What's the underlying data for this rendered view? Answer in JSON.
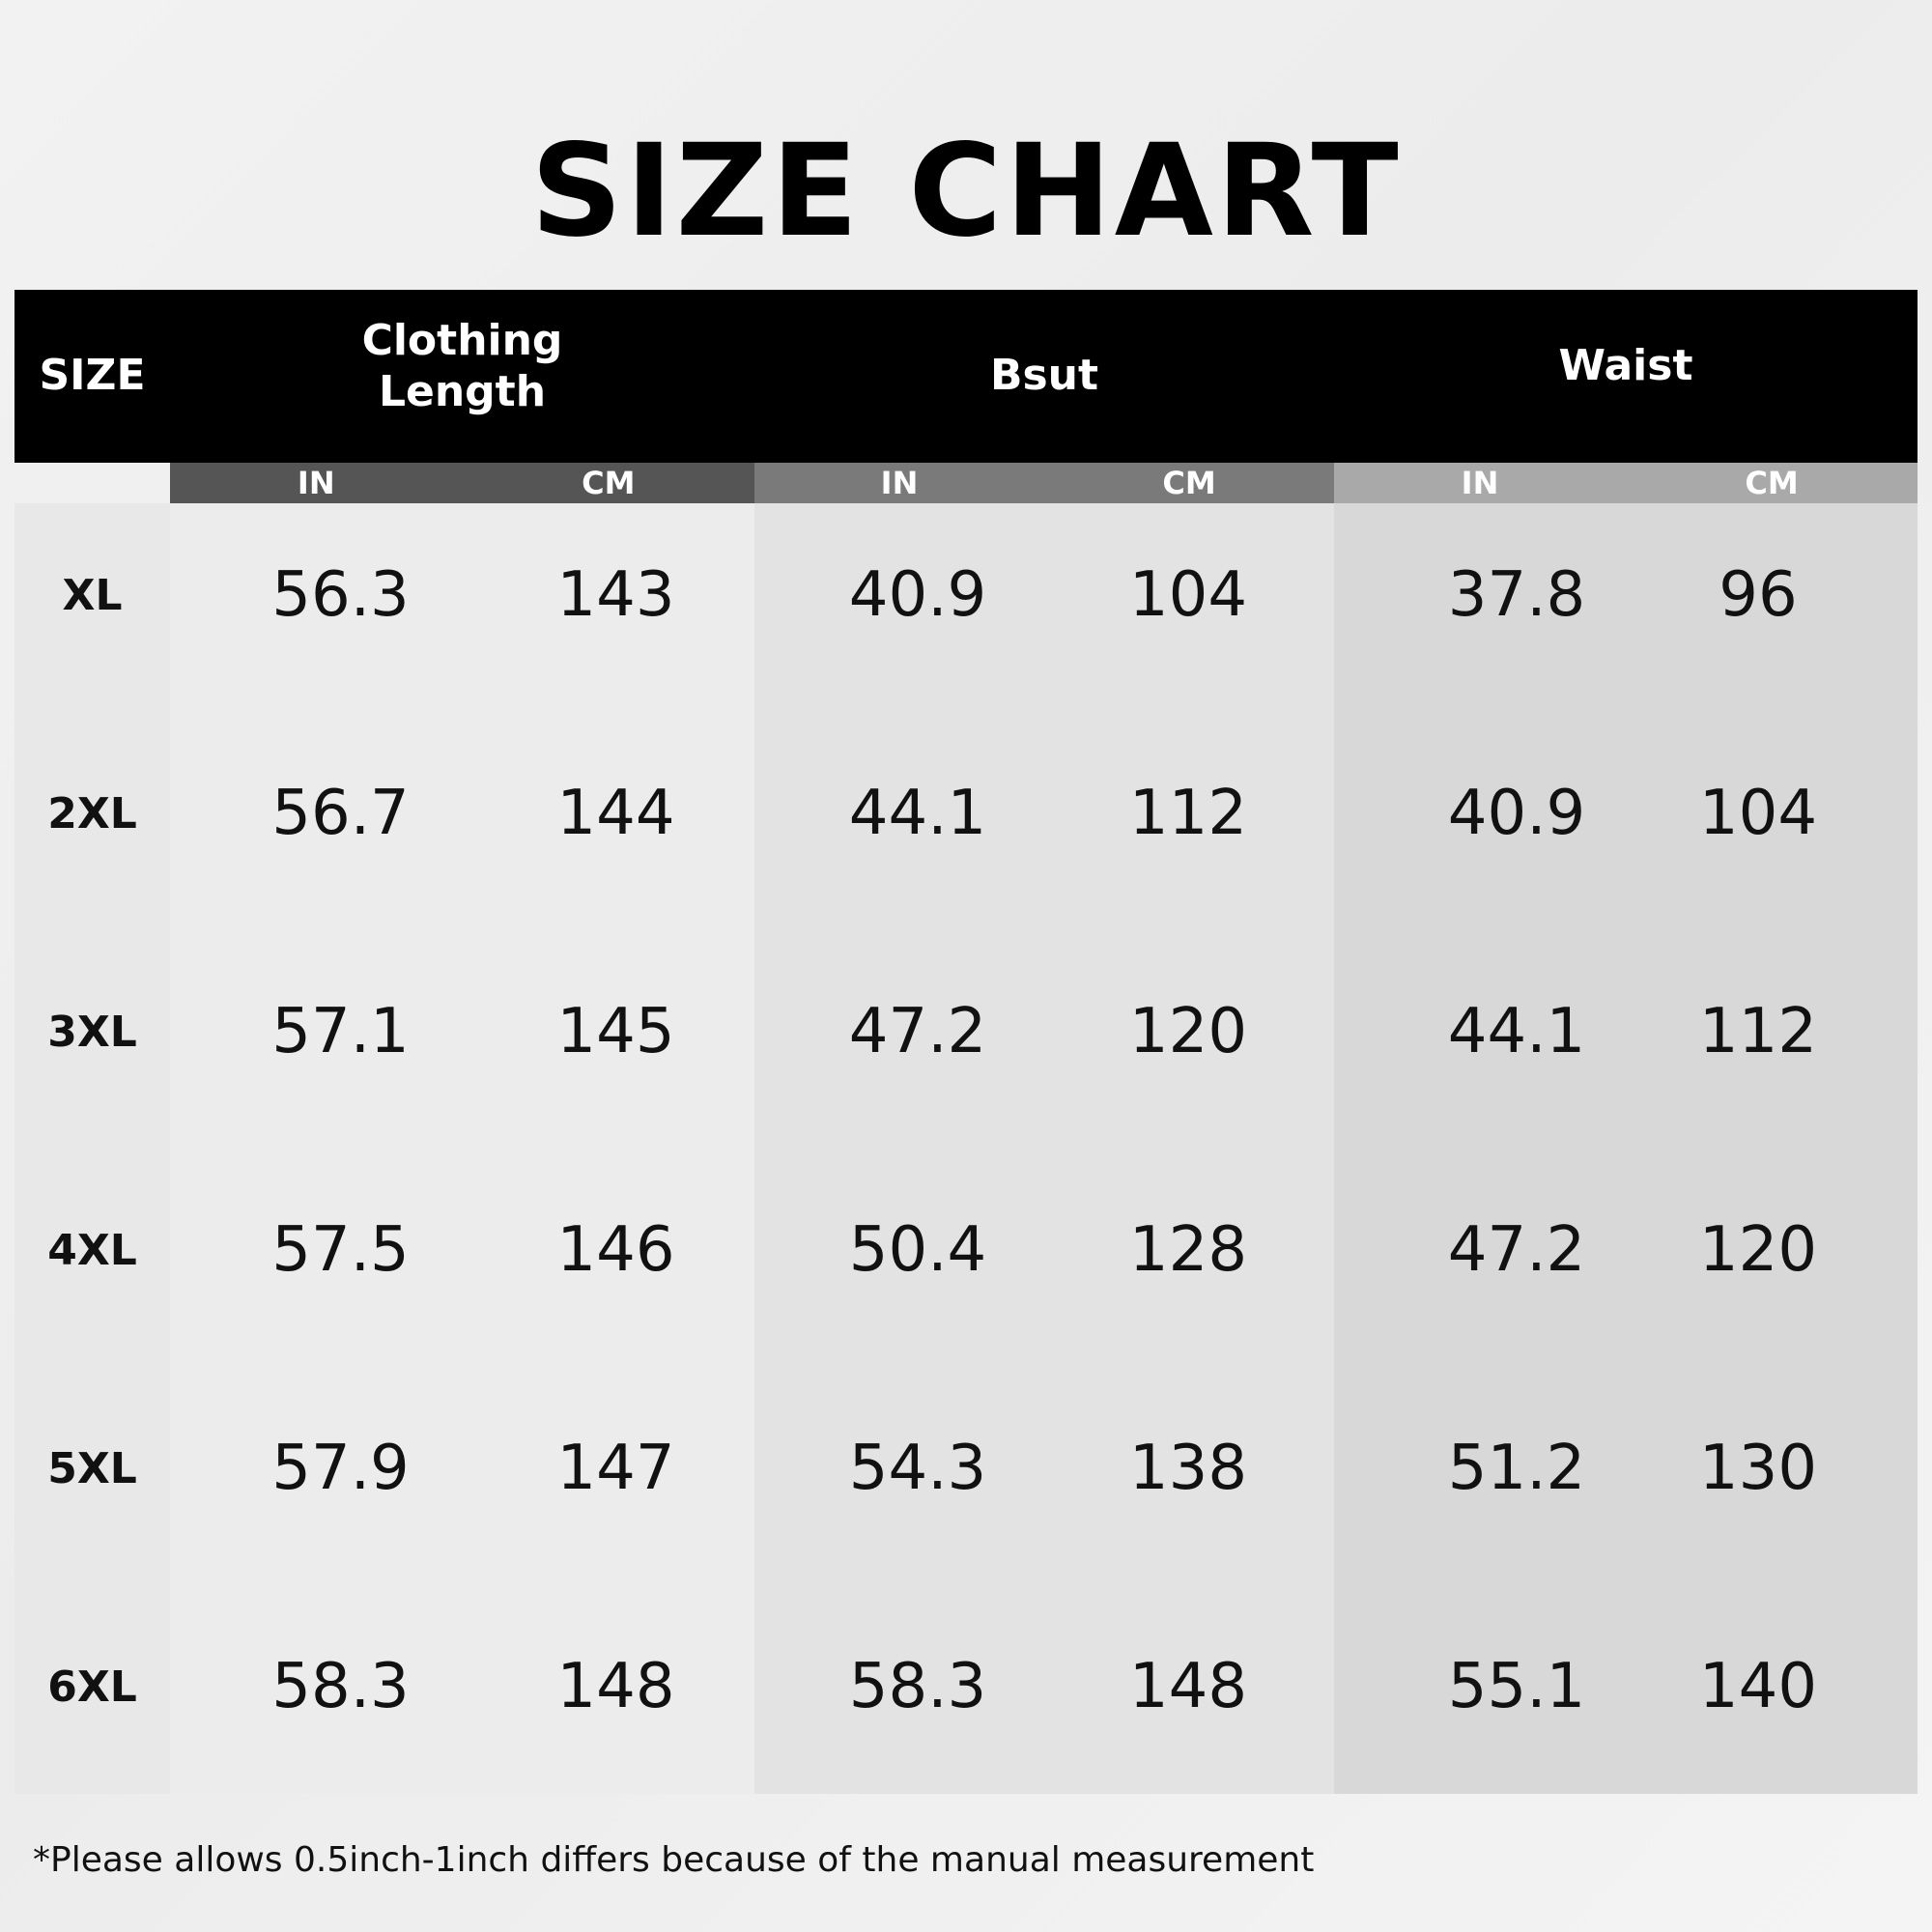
{
  "title": "SIZE CHART",
  "headers": {
    "size": "SIZE",
    "clothing_length": "Clothing Length",
    "bust": "Bsut",
    "waist": "Waist",
    "in": "IN",
    "cm": "CM"
  },
  "rows": [
    {
      "size": "XL",
      "len_in": "56.3",
      "len_cm": "143",
      "bust_in": "40.9",
      "bust_cm": "104",
      "waist_in": "37.8",
      "waist_cm": "96"
    },
    {
      "size": "2XL",
      "len_in": "56.7",
      "len_cm": "144",
      "bust_in": "44.1",
      "bust_cm": "112",
      "waist_in": "40.9",
      "waist_cm": "104"
    },
    {
      "size": "3XL",
      "len_in": "57.1",
      "len_cm": "145",
      "bust_in": "47.2",
      "bust_cm": "120",
      "waist_in": "44.1",
      "waist_cm": "112"
    },
    {
      "size": "4XL",
      "len_in": "57.5",
      "len_cm": "146",
      "bust_in": "50.4",
      "bust_cm": "128",
      "waist_in": "47.2",
      "waist_cm": "120"
    },
    {
      "size": "5XL",
      "len_in": "57.9",
      "len_cm": "147",
      "bust_in": "54.3",
      "bust_cm": "138",
      "waist_in": "51.2",
      "waist_cm": "130"
    },
    {
      "size": "6XL",
      "len_in": "58.3",
      "len_cm": "148",
      "bust_in": "58.3",
      "bust_cm": "148",
      "waist_in": "55.1",
      "waist_cm": "140"
    }
  ],
  "note": "*Please allows 0.5inch-1inch differs because of the manual measurement",
  "chart_data": {
    "type": "table",
    "title": "SIZE CHART",
    "columns": [
      "SIZE",
      "Clothing Length IN",
      "Clothing Length CM",
      "Bsut IN",
      "Bsut CM",
      "Waist IN",
      "Waist CM"
    ],
    "rows": [
      [
        "XL",
        56.3,
        143,
        40.9,
        104,
        37.8,
        96
      ],
      [
        "2XL",
        56.7,
        144,
        44.1,
        112,
        40.9,
        104
      ],
      [
        "3XL",
        57.1,
        145,
        47.2,
        120,
        44.1,
        112
      ],
      [
        "4XL",
        57.5,
        146,
        50.4,
        128,
        47.2,
        120
      ],
      [
        "5XL",
        57.9,
        147,
        54.3,
        138,
        51.2,
        130
      ],
      [
        "6XL",
        58.3,
        148,
        58.3,
        148,
        55.1,
        140
      ]
    ]
  }
}
